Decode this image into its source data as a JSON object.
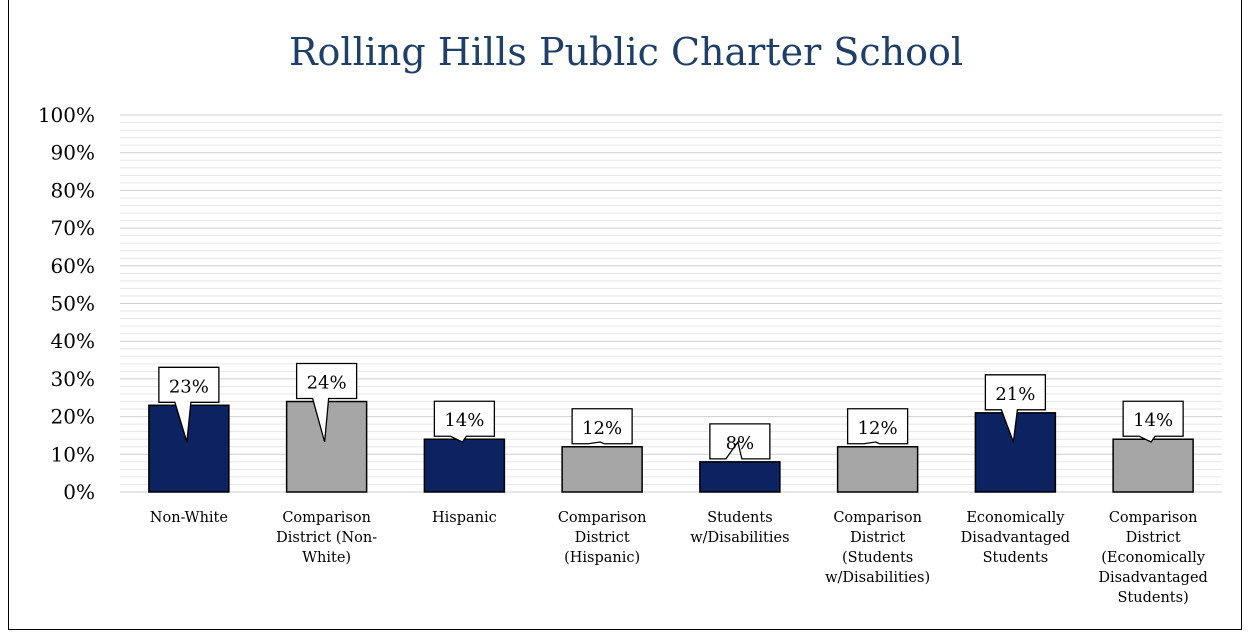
{
  "chart_data": {
    "type": "bar",
    "title": "Rolling Hills Public Charter School",
    "categories": [
      [
        "Non-White"
      ],
      [
        "Comparison",
        "District (Non-",
        "White)"
      ],
      [
        "Hispanic"
      ],
      [
        "Comparison",
        "District",
        "(Hispanic)"
      ],
      [
        "Students",
        "w/Disabilities"
      ],
      [
        "Comparison",
        "District",
        "(Students",
        "w/Disabilities)"
      ],
      [
        "Economically",
        "Disadvantaged",
        "Students"
      ],
      [
        "Comparison",
        "District",
        "(Economically",
        "Disadvantaged",
        "Students)"
      ]
    ],
    "values": [
      23,
      24,
      14,
      12,
      8,
      12,
      21,
      14
    ],
    "data_labels": [
      "23%",
      "24%",
      "14%",
      "12%",
      "8%",
      "12%",
      "21%",
      "14%"
    ],
    "bar_colors": [
      "#0d2260",
      "#a6a6a6",
      "#0d2260",
      "#a6a6a6",
      "#0d2260",
      "#a6a6a6",
      "#0d2260",
      "#a6a6a6"
    ],
    "y_ticks": [
      "0%",
      "10%",
      "20%",
      "30%",
      "40%",
      "50%",
      "60%",
      "70%",
      "80%",
      "90%",
      "100%"
    ],
    "ylim": [
      0,
      100
    ],
    "grid": true,
    "legend": "none"
  }
}
